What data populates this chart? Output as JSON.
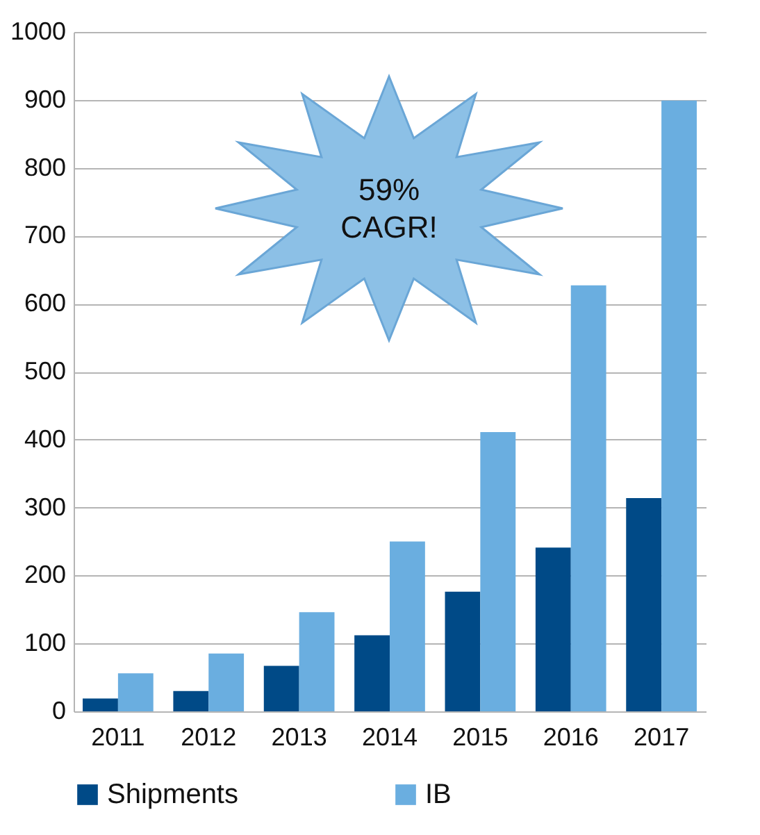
{
  "chart_data": {
    "type": "bar",
    "categories": [
      "2011",
      "2012",
      "2013",
      "2014",
      "2015",
      "2016",
      "2017"
    ],
    "series": [
      {
        "name": "Shipments",
        "color": "#004a87",
        "values": [
          19,
          30,
          67,
          112,
          176,
          241,
          314
        ]
      },
      {
        "name": "IB",
        "color": "#6aaee0",
        "values": [
          56,
          85,
          146,
          250,
          411,
          627,
          899
        ]
      }
    ],
    "ylim": [
      0,
      1000
    ],
    "yticks": [
      0,
      100,
      200,
      300,
      400,
      500,
      600,
      700,
      800,
      900,
      1000
    ],
    "grid": "y",
    "legend": "bottom",
    "annotations": [
      "59%\nCAGR!"
    ]
  }
}
